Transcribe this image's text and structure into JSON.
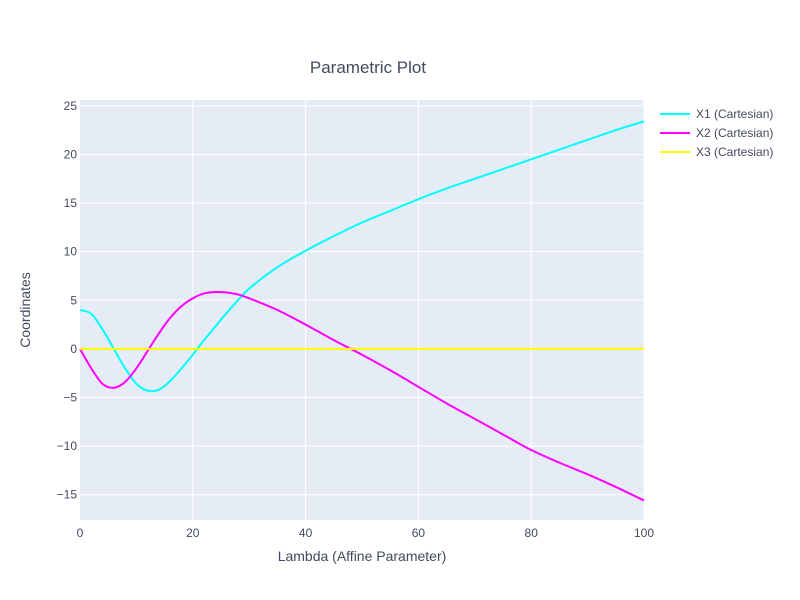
{
  "chart_data": {
    "type": "line",
    "title": "Parametric Plot",
    "xlabel": "Lambda (Affine Parameter)",
    "ylabel": "Coordinates",
    "xlim": [
      0,
      100
    ],
    "ylim": [
      -17.6,
      25.6
    ],
    "x_ticks": [
      0,
      20,
      40,
      60,
      80,
      100
    ],
    "y_ticks": [
      -15,
      -10,
      -5,
      0,
      5,
      10,
      15,
      20,
      25
    ],
    "grid": true,
    "legend_position": "top-right",
    "background": "#e5ecf6",
    "series": [
      {
        "name": "X1 (Cartesian)",
        "color": "#00ffff",
        "x": [
          0,
          2,
          4,
          6,
          8,
          10,
          12,
          14,
          16,
          18,
          20,
          22,
          24,
          26,
          28,
          30,
          35,
          40,
          45,
          50,
          55,
          60,
          65,
          70,
          75,
          80,
          85,
          90,
          95,
          100
        ],
        "y": [
          4.0,
          3.6,
          2.0,
          0.0,
          -2.0,
          -3.6,
          -4.3,
          -4.2,
          -3.3,
          -2.0,
          -0.6,
          0.9,
          2.3,
          3.7,
          5.0,
          6.2,
          8.4,
          10.1,
          11.6,
          13.0,
          14.2,
          15.4,
          16.5,
          17.5,
          18.5,
          19.5,
          20.5,
          21.5,
          22.5,
          23.4
        ]
      },
      {
        "name": "X2 (Cartesian)",
        "color": "#ff00ff",
        "x": [
          0,
          2,
          4,
          6,
          8,
          10,
          12,
          14,
          16,
          18,
          20,
          22,
          24,
          26,
          28,
          30,
          35,
          40,
          45,
          50,
          55,
          60,
          65,
          70,
          75,
          80,
          85,
          90,
          95,
          100
        ],
        "y": [
          0.0,
          -2.0,
          -3.6,
          -4.0,
          -3.4,
          -2.0,
          -0.2,
          1.6,
          3.2,
          4.4,
          5.2,
          5.7,
          5.85,
          5.8,
          5.6,
          5.2,
          4.0,
          2.5,
          0.9,
          -0.6,
          -2.2,
          -3.9,
          -5.6,
          -7.2,
          -8.8,
          -10.4,
          -11.7,
          -12.9,
          -14.2,
          -15.6
        ]
      },
      {
        "name": "X3 (Cartesian)",
        "color": "#ffff00",
        "x": [
          0,
          100
        ],
        "y": [
          0,
          0
        ]
      }
    ]
  }
}
